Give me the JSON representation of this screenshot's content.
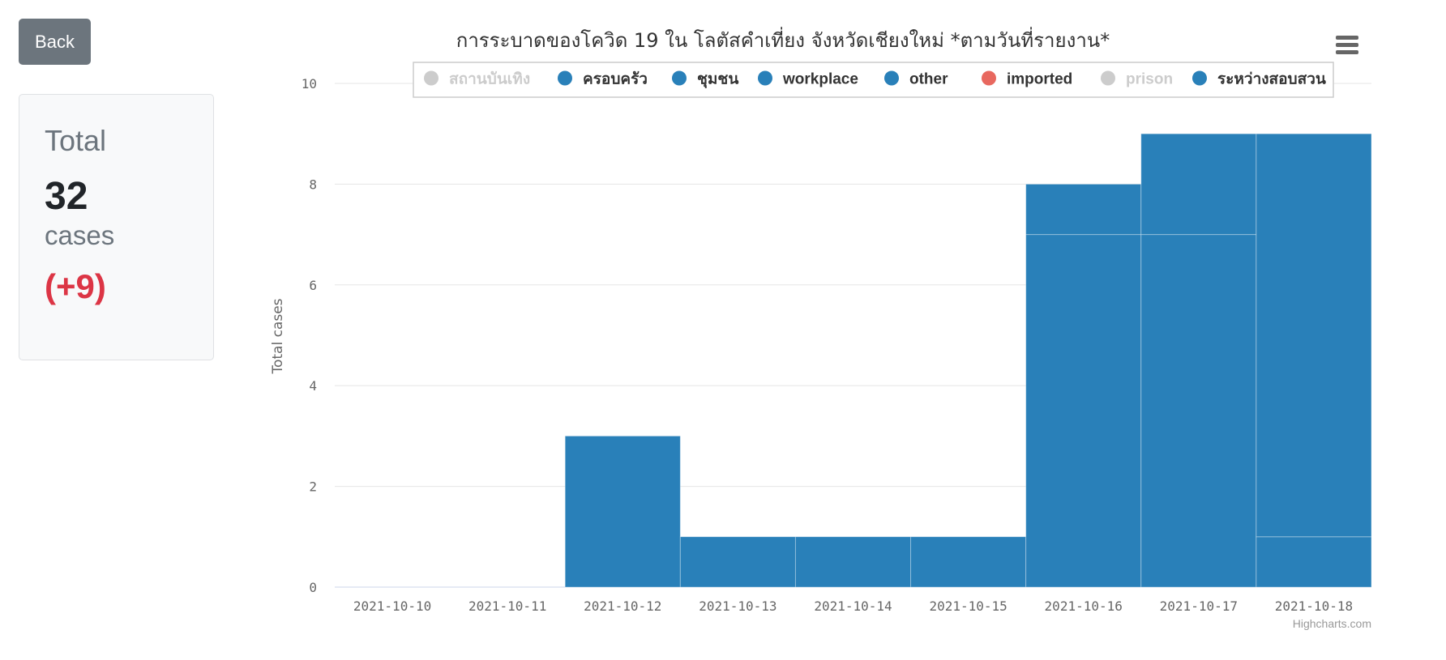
{
  "back_label": "Back",
  "summary": {
    "title": "Total",
    "count": "32",
    "unit": "cases",
    "delta": "(+9)"
  },
  "menu_icon": "hamburger-menu-icon",
  "credit": "Highcharts.com",
  "colors": {
    "bar": "#2980b9",
    "imported": "#e8685f",
    "hidden": "#cccccc",
    "delta": "#dc3545"
  },
  "chart_data": {
    "type": "bar",
    "stacked": true,
    "title": "การระบาดของโควิด 19 ใน โลตัสคำเที่ยง จังหวัดเชียงใหม่ *ตามวันที่รายงาน*",
    "ylabel": "Total cases",
    "xlabel": "",
    "ylim": [
      0,
      10
    ],
    "yticks": [
      0,
      2,
      4,
      6,
      8,
      10
    ],
    "grid": true,
    "legend_position": "top",
    "categories": [
      "2021-10-10",
      "2021-10-11",
      "2021-10-12",
      "2021-10-13",
      "2021-10-14",
      "2021-10-15",
      "2021-10-16",
      "2021-10-17",
      "2021-10-18"
    ],
    "series": [
      {
        "name": "สถานบันเทิง",
        "visible": false,
        "color": "#cccccc",
        "values": [
          0,
          0,
          0,
          0,
          0,
          0,
          0,
          0,
          0
        ]
      },
      {
        "name": "ครอบครัว",
        "visible": true,
        "color": "#2980b9",
        "values": [
          0,
          0,
          0,
          0,
          0,
          0,
          0,
          0,
          0
        ]
      },
      {
        "name": "ชุมชน",
        "visible": true,
        "color": "#2980b9",
        "values": [
          0,
          0,
          3,
          1,
          1,
          1,
          7,
          7,
          1
        ]
      },
      {
        "name": "workplace",
        "visible": true,
        "color": "#2980b9",
        "values": [
          0,
          0,
          0,
          0,
          0,
          0,
          1,
          2,
          8
        ]
      },
      {
        "name": "other",
        "visible": true,
        "color": "#2980b9",
        "values": [
          0,
          0,
          0,
          0,
          0,
          0,
          0,
          0,
          0
        ]
      },
      {
        "name": "imported",
        "visible": true,
        "color": "#e8685f",
        "values": [
          0,
          0,
          0,
          0,
          0,
          0,
          0,
          0,
          0
        ]
      },
      {
        "name": "prison",
        "visible": false,
        "color": "#cccccc",
        "values": [
          0,
          0,
          0,
          0,
          0,
          0,
          0,
          0,
          0
        ]
      },
      {
        "name": "ระหว่างสอบสวน",
        "visible": true,
        "color": "#2980b9",
        "values": [
          0,
          0,
          0,
          0,
          0,
          0,
          0,
          0,
          0
        ]
      }
    ]
  }
}
